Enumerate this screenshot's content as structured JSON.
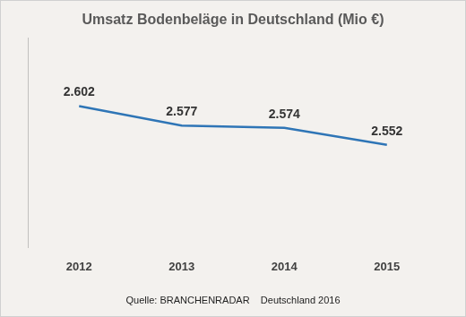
{
  "chart_data": {
    "type": "line",
    "title": "Umsatz Bodenbeläge in Deutschland (Mio €)",
    "source": "Quelle: BRANCHENRADAR    Deutschland 2016",
    "categories": [
      "2012",
      "2013",
      "2014",
      "2015"
    ],
    "values": [
      2602,
      2577,
      2574,
      2552
    ],
    "value_labels": [
      "2.602",
      "2.577",
      "2.574",
      "2.552"
    ],
    "data_labels": true,
    "color": "#2e75b6",
    "marker": "none",
    "ylim": [
      2420,
      2690
    ],
    "grid": false,
    "tick_labels": "x"
  }
}
